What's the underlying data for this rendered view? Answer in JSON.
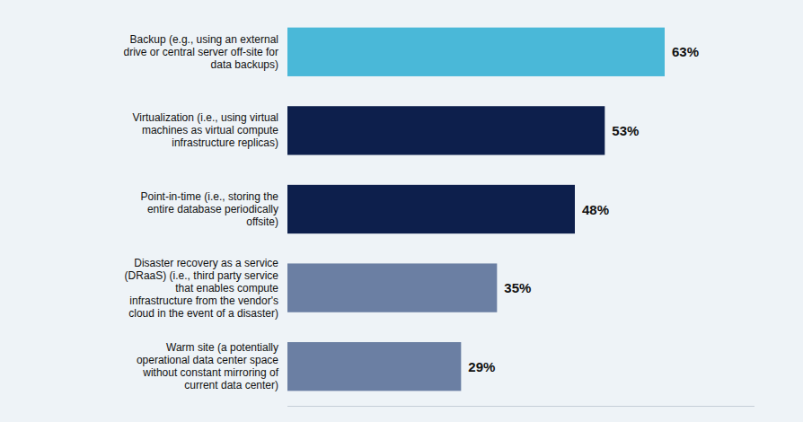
{
  "chart_data": {
    "type": "bar",
    "orientation": "horizontal",
    "categories": [
      "Backup (e.g., using an external\ndrive or central server off-site for\ndata backups)",
      "Virtualization (i.e., using virtual\nmachines as virtual compute\ninfrastructure replicas)",
      "Point-in-time (i.e., storing the\nentire database periodically\noffsite)",
      "Disaster recovery as a service\n(DRaaS) (i.e., third party service\nthat enables compute\ninfrastructure from the vendor's\ncloud in the event of a disaster)",
      "Warm site (a potentially\noperational data center space\nwithout constant mirroring of\ncurrent data center)"
    ],
    "values": [
      63,
      53,
      48,
      35,
      29
    ],
    "value_labels": [
      "63%",
      "53%",
      "48%",
      "35%",
      "29%"
    ],
    "colors": [
      "#4ab8d8",
      "#0d1f4c",
      "#0d1f4c",
      "#6b7fa3",
      "#6b7fa3"
    ],
    "xlim": [
      0,
      78
    ],
    "data_labels": true,
    "tick_labels": "y",
    "grid": false
  }
}
